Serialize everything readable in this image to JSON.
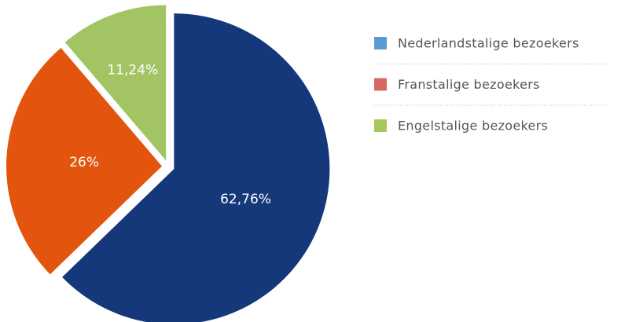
{
  "chart_data": {
    "type": "pie",
    "categories": [
      "Nederlandstalige bezoekers",
      "Franstalige bezoekers",
      "Engelstalige bezoekers"
    ],
    "values": [
      62.76,
      26,
      11.24
    ],
    "value_labels": [
      "62,76%",
      "26%",
      "11,24%"
    ],
    "colors": [
      "#14387a",
      "#e3550f",
      "#a3c462"
    ],
    "legend_colors": [
      "#5b9bd5",
      "#d9665f",
      "#a5c85a"
    ],
    "legend": "right"
  }
}
